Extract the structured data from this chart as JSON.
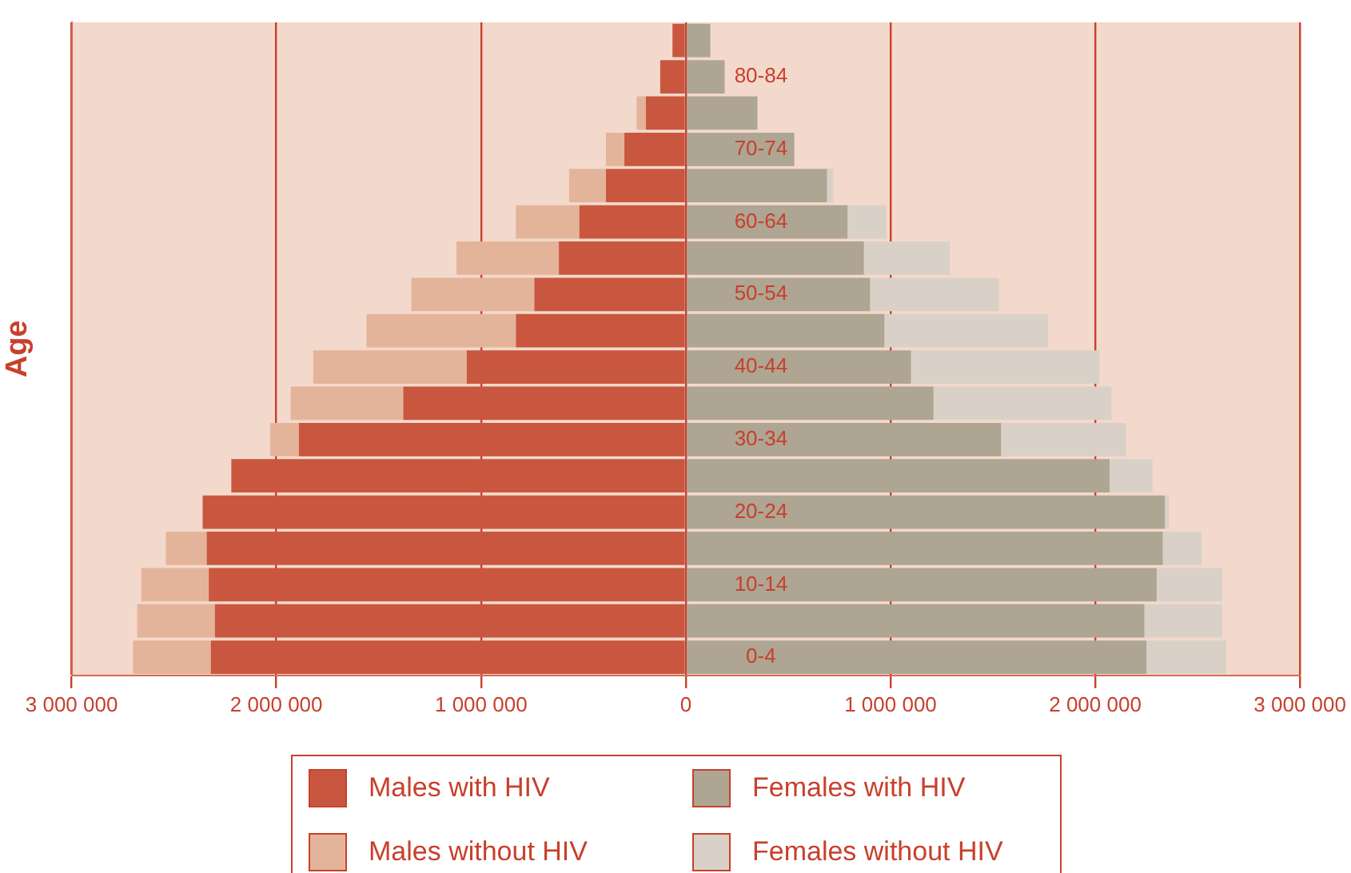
{
  "chart_data": {
    "type": "bar",
    "orientation": "horizontal",
    "stacked": true,
    "ylabel": "Age",
    "categories": [
      null,
      "80-84",
      null,
      "70-74",
      null,
      "60-64",
      null,
      "50-54",
      null,
      "40-44",
      null,
      "30-34",
      null,
      "20-24",
      null,
      "10-14",
      null,
      "0-4"
    ],
    "series": [
      {
        "name": "Males with HIV",
        "color": "#c9573f",
        "values": [
          -65000,
          -125000,
          -195000,
          -300000,
          -390000,
          -520000,
          -620000,
          -740000,
          -830000,
          -1070000,
          -1380000,
          -1890000,
          -2220000,
          -2360000,
          -2340000,
          -2330000,
          -2300000,
          -2320000
        ]
      },
      {
        "name": "Males without HIV",
        "color": "#e4b49a",
        "values": [
          0,
          0,
          -45000,
          -90000,
          -180000,
          -310000,
          -500000,
          -600000,
          -730000,
          -750000,
          -550000,
          -140000,
          0,
          0,
          -200000,
          -330000,
          -380000,
          -380000
        ]
      },
      {
        "name": "Females with HIV",
        "color": "#aea593",
        "values": [
          120000,
          190000,
          350000,
          530000,
          690000,
          790000,
          870000,
          900000,
          970000,
          1100000,
          1210000,
          1540000,
          2070000,
          2340000,
          2330000,
          2300000,
          2240000,
          2250000
        ]
      },
      {
        "name": "Females without HIV",
        "color": "#d9d1c7",
        "values": [
          0,
          0,
          0,
          0,
          30000,
          190000,
          420000,
          630000,
          800000,
          920000,
          870000,
          610000,
          210000,
          20000,
          190000,
          320000,
          380000,
          390000
        ]
      }
    ],
    "xlim": [
      -3000000,
      3000000
    ],
    "xticks": [
      {
        "value": -3000000,
        "label": "3 000 000"
      },
      {
        "value": -2000000,
        "label": "2 000 000"
      },
      {
        "value": -1000000,
        "label": "1 000 000"
      },
      0,
      {
        "value": 1000000,
        "label": "1 000 000"
      },
      {
        "value": 2000000,
        "label": "2 000 000"
      },
      {
        "value": 3000000,
        "label": "3 000 000"
      }
    ],
    "grid": "x",
    "legend": "bottom"
  }
}
